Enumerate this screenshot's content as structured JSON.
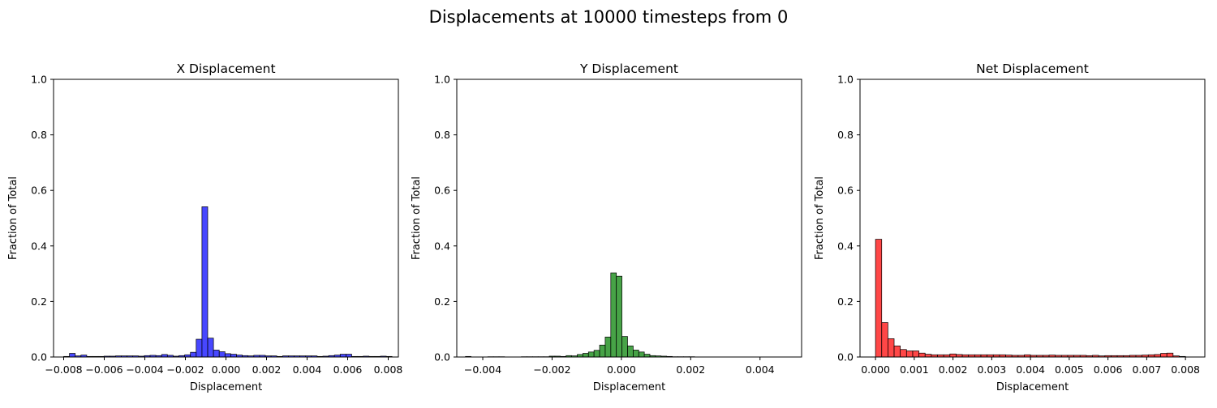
{
  "figure": {
    "title": "Displacements at 10000 timesteps from 0"
  },
  "chart_data": [
    {
      "type": "bar",
      "title": "X Displacement",
      "xlabel": "Displacement",
      "ylabel": "Fraction of Total",
      "xlim": [
        -0.0085,
        0.0085
      ],
      "ylim": [
        0,
        1.0
      ],
      "xticks": [
        -0.008,
        -0.006,
        -0.004,
        -0.002,
        0.0,
        0.002,
        0.004,
        0.006,
        0.008
      ],
      "xtick_labels": [
        "−0.008",
        "−0.006",
        "−0.004",
        "−0.002",
        "0.000",
        "0.002",
        "0.004",
        "0.006",
        "0.008"
      ],
      "yticks": [
        0.0,
        0.2,
        0.4,
        0.6,
        0.8,
        1.0
      ],
      "ytick_labels": [
        "0.0",
        "0.2",
        "0.4",
        "0.6",
        "0.8",
        "1.0"
      ],
      "color": "#0000ff",
      "bin_start": -0.008,
      "bin_width": 0.000284,
      "values": [
        0.002,
        0.013,
        0.004,
        0.007,
        0.002,
        0.002,
        0.002,
        0.003,
        0.003,
        0.004,
        0.004,
        0.004,
        0.004,
        0.003,
        0.005,
        0.006,
        0.005,
        0.009,
        0.006,
        0.003,
        0.005,
        0.008,
        0.017,
        0.064,
        0.541,
        0.068,
        0.025,
        0.019,
        0.012,
        0.01,
        0.007,
        0.005,
        0.004,
        0.006,
        0.006,
        0.004,
        0.004,
        0.002,
        0.004,
        0.004,
        0.004,
        0.004,
        0.004,
        0.004,
        0.002,
        0.003,
        0.005,
        0.007,
        0.01,
        0.01,
        0.002,
        0.002,
        0.003,
        0.002,
        0.002,
        0.003,
        0.002
      ]
    },
    {
      "type": "bar",
      "title": "Y Displacement",
      "xlabel": "Displacement",
      "ylabel": "Fraction of Total",
      "xlim": [
        -0.00475,
        0.0052
      ],
      "ylim": [
        0,
        1.0
      ],
      "xticks": [
        -0.004,
        -0.002,
        0.0,
        0.002,
        0.004
      ],
      "xtick_labels": [
        "−0.004",
        "−0.002",
        "0.000",
        "0.002",
        "0.004"
      ],
      "yticks": [
        0.0,
        0.2,
        0.4,
        0.6,
        0.8,
        1.0
      ],
      "ytick_labels": [
        "0.0",
        "0.2",
        "0.4",
        "0.6",
        "0.8",
        "1.0"
      ],
      "color": "#008000",
      "bin_start": -0.0045,
      "bin_width": 0.0001613,
      "values": [
        0.002,
        0.0,
        0.0,
        0.0,
        0.001,
        0.001,
        0.001,
        0.0,
        0.0,
        0.0,
        0.001,
        0.001,
        0.001,
        0.001,
        0.001,
        0.003,
        0.003,
        0.002,
        0.005,
        0.004,
        0.009,
        0.013,
        0.018,
        0.024,
        0.043,
        0.072,
        0.303,
        0.291,
        0.074,
        0.04,
        0.025,
        0.018,
        0.01,
        0.005,
        0.004,
        0.003,
        0.002,
        0.001,
        0.001,
        0.001,
        0.001,
        0.0,
        0.0,
        0.0,
        0.0,
        0.0,
        0.0,
        0.0,
        0.0,
        0.0,
        0.0,
        0.0,
        0.0,
        0.0,
        0.0,
        0.0,
        0.0,
        0.0,
        0.0,
        0.0,
        0.0,
        0.0
      ]
    },
    {
      "type": "bar",
      "title": "Net Displacement",
      "xlabel": "Displacement",
      "ylabel": "Fraction of Total",
      "xlim": [
        -0.0004,
        0.0085
      ],
      "ylim": [
        0,
        1.0
      ],
      "xticks": [
        0.0,
        0.001,
        0.002,
        0.003,
        0.004,
        0.005,
        0.006,
        0.007,
        0.008
      ],
      "xtick_labels": [
        "0.000",
        "0.001",
        "0.002",
        "0.003",
        "0.004",
        "0.005",
        "0.006",
        "0.007",
        "0.008"
      ],
      "yticks": [
        0.0,
        0.2,
        0.4,
        0.6,
        0.8,
        1.0
      ],
      "ytick_labels": [
        "0.0",
        "0.2",
        "0.4",
        "0.6",
        "0.8",
        "1.0"
      ],
      "color": "#ff0000",
      "bin_start": 0.0,
      "bin_width": 0.00016,
      "values": [
        0.424,
        0.124,
        0.066,
        0.04,
        0.027,
        0.022,
        0.022,
        0.014,
        0.01,
        0.008,
        0.008,
        0.008,
        0.011,
        0.009,
        0.008,
        0.008,
        0.008,
        0.008,
        0.008,
        0.008,
        0.008,
        0.007,
        0.006,
        0.006,
        0.008,
        0.006,
        0.006,
        0.006,
        0.007,
        0.006,
        0.006,
        0.006,
        0.006,
        0.006,
        0.005,
        0.006,
        0.004,
        0.005,
        0.005,
        0.005,
        0.005,
        0.006,
        0.006,
        0.007,
        0.008,
        0.009,
        0.013,
        0.014,
        0.004,
        0.002
      ]
    }
  ]
}
